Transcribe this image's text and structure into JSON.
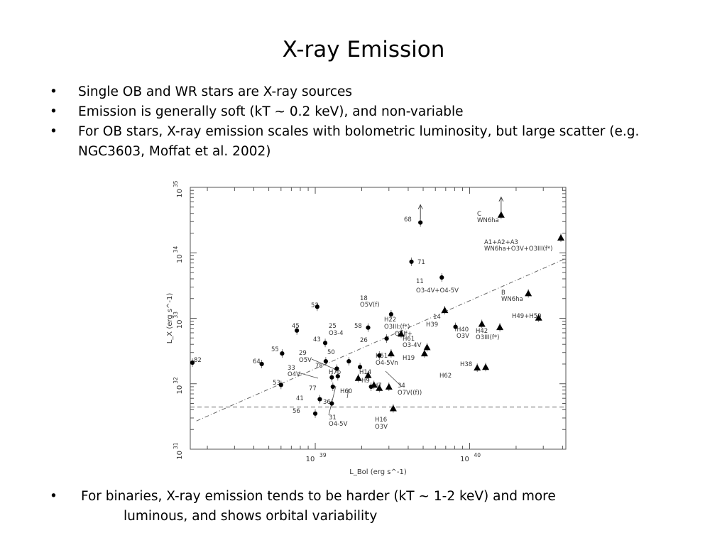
{
  "slide": {
    "title": "X-ray Emission",
    "bullets": [
      "Single OB and WR stars are X-ray sources",
      "Emission is generally soft (kT ~ 0.2 keV), and non-variable",
      "For OB stars, X-ray emission scales with bolometric luminosity, but large scatter (e.g. NGC3603, Moffat et al. 2002)"
    ],
    "bullet_symbol": "•",
    "bottom_bullet": {
      "line1": "For binaries, X-ray emission tends to be harder (kT ~ 1-2 keV) and more",
      "line2": "luminous, and shows orbital variability"
    }
  },
  "chart_data": {
    "type": "scatter",
    "x_scale": "log",
    "y_scale": "log",
    "xlabel": "L_Bol (erg s^-1)",
    "ylabel": "L_X (erg s^-1)",
    "xlim": [
      1.55e+38,
      4.2e+40
    ],
    "ylim": [
      1e+31,
      1e+35
    ],
    "x_ticks": [
      {
        "value": 1e+39,
        "base": "10",
        "exp": "39"
      },
      {
        "value": 1e+40,
        "base": "10",
        "exp": "40"
      }
    ],
    "y_ticks": [
      {
        "value": 1e+31,
        "base": "10",
        "exp": "31"
      },
      {
        "value": 1e+32,
        "base": "10",
        "exp": "32"
      },
      {
        "value": 1e+33,
        "base": "10",
        "exp": "33"
      },
      {
        "value": 1e+34,
        "base": "10",
        "exp": "34"
      },
      {
        "value": 1e+35,
        "base": "10",
        "exp": "35"
      }
    ],
    "grid": false,
    "reference_lines": [
      {
        "kind": "horizontal-dashed",
        "y": 4.4e+31
      },
      {
        "kind": "dash-dot",
        "x1": 1.7e+38,
        "y1": 2.7e+31,
        "x2": 4.2e+40,
        "y2": 8.2e+33
      }
    ],
    "series": [
      {
        "marker": "circle",
        "points": [
          {
            "label": "82",
            "x": 1.6e+38,
            "y": 2.1e+32
          },
          {
            "label": "64",
            "x": 4.5e+38,
            "y": 2e+32
          },
          {
            "label": "55",
            "x": 6.1e+38,
            "y": 2.9e+32
          },
          {
            "label": "53",
            "x": 6e+38,
            "y": 9.6e+31
          },
          {
            "label": "45",
            "x": 7.6e+38,
            "y": 6.5e+32
          },
          {
            "label": "52",
            "x": 1.03e+39,
            "y": 1.5e+33
          },
          {
            "label": "43",
            "x": 1.16e+39,
            "y": 4.2e+32
          },
          {
            "label": "29",
            "x": 1.17e+39,
            "y": 2.2e+32
          },
          {
            "label": "33",
            "x": 1.28e+39,
            "y": 1.25e+32
          },
          {
            "label": "78",
            "x": 1.38e+39,
            "y": 1.7e+32
          },
          {
            "label": "77",
            "x": 1.3e+39,
            "y": 9e+31
          },
          {
            "label": "41",
            "x": 1.07e+39,
            "y": 5.8e+31
          },
          {
            "label": "36",
            "x": 1.28e+39,
            "y": 5e+31
          },
          {
            "label": "56",
            "x": 1e+39,
            "y": 3.5e+31
          },
          {
            "label": "50",
            "x": 1.65e+39,
            "y": 2.2e+32
          },
          {
            "label": "",
            "x": 1.4e+39,
            "y": 1.3e+32
          },
          {
            "label": "",
            "x": 1.95e+39,
            "y": 1.8e+32
          },
          {
            "label": "58",
            "x": 2.2e+39,
            "y": 7.2e+32
          },
          {
            "label": "25",
            "x": 2.6e+39,
            "y": 2.7e+32
          },
          {
            "label": "26",
            "x": 2.9e+39,
            "y": 4.9e+32
          },
          {
            "label": "",
            "x": 2.3e+39,
            "y": 9e+31
          },
          {
            "label": "18",
            "x": 3.1e+39,
            "y": 1.15e+33
          },
          {
            "label": "68",
            "x": 4.8e+39,
            "y": 2.9e+34
          },
          {
            "label": "71",
            "x": 4.2e+39,
            "y": 7.3e+33
          },
          {
            "label": "11",
            "x": 6.6e+39,
            "y": 4.2e+33
          },
          {
            "label": "14",
            "x": 8.1e+39,
            "y": 7.4e+32
          }
        ]
      },
      {
        "marker": "triangle",
        "points": [
          {
            "label": "C",
            "x": 1.6e+40,
            "y": 3.8e+34
          },
          {
            "label": "A1+A2+A3",
            "x": 3.9e+40,
            "y": 1.7e+34
          },
          {
            "label": "B",
            "x": 2.4e+40,
            "y": 2.4e+33
          },
          {
            "label": "H49+H50",
            "x": 2.8e+40,
            "y": 1.02e+33
          },
          {
            "label": "H39",
            "x": 6.9e+39,
            "y": 1.33e+33
          },
          {
            "label": "H40",
            "x": 1.2e+40,
            "y": 8.2e+32
          },
          {
            "label": "H42",
            "x": 1.57e+40,
            "y": 7.3e+32
          },
          {
            "label": "H22",
            "x": 3.6e+39,
            "y": 5.8e+32
          },
          {
            "label": "H61",
            "x": 5.3e+39,
            "y": 3.6e+32
          },
          {
            "label": "H19",
            "x": 5.1e+39,
            "y": 2.9e+32
          },
          {
            "label": "H51",
            "x": 3.1e+39,
            "y": 2.9e+32
          },
          {
            "label": "H14",
            "x": 2.2e+39,
            "y": 1.35e+32
          },
          {
            "label": "H7b",
            "x": 1.9e+39,
            "y": 1.22e+32
          },
          {
            "label": "H9",
            "x": 2.4e+39,
            "y": 9.6e+31
          },
          {
            "label": "H60",
            "x": 2.6e+39,
            "y": 8.6e+31
          },
          {
            "label": "H7",
            "x": 3e+39,
            "y": 9e+31
          },
          {
            "label": "H38",
            "x": 1.27e+40,
            "y": 1.8e+32
          },
          {
            "label": "H62",
            "x": 1.12e+40,
            "y": 1.76e+32
          },
          {
            "label": "H16",
            "x": 3.2e+39,
            "y": 4.2e+31
          }
        ]
      }
    ],
    "annotations": [
      "68",
      "71",
      "11",
      "O3-4V+O4-5V",
      "C",
      "WN6ha",
      "A1+A2+A3",
      "WN6ha+O3V+O3III(f*)",
      "B",
      "WN6ha",
      "18",
      "O5V(f)",
      "H22",
      "O3III:(f*)",
      "14",
      "O4If+",
      "H39",
      "H40",
      "O3V",
      "H42",
      "O3III(f*)",
      "H49+H50",
      "52",
      "45",
      "58",
      "25",
      "O3-4",
      "43",
      "26",
      "H61",
      "O3-4V",
      "H19",
      "H51",
      "O4-5Vn",
      "55",
      "82",
      "64",
      "29",
      "O5V",
      "50",
      "78",
      "33",
      "O4V",
      "H7b",
      "H14",
      "H9",
      "H60",
      "H7",
      "53",
      "77",
      "41",
      "36",
      "56",
      "31",
      "O4-5V",
      "34",
      "O7V((f))",
      "H16",
      "O3V",
      "H38",
      "H62"
    ]
  }
}
